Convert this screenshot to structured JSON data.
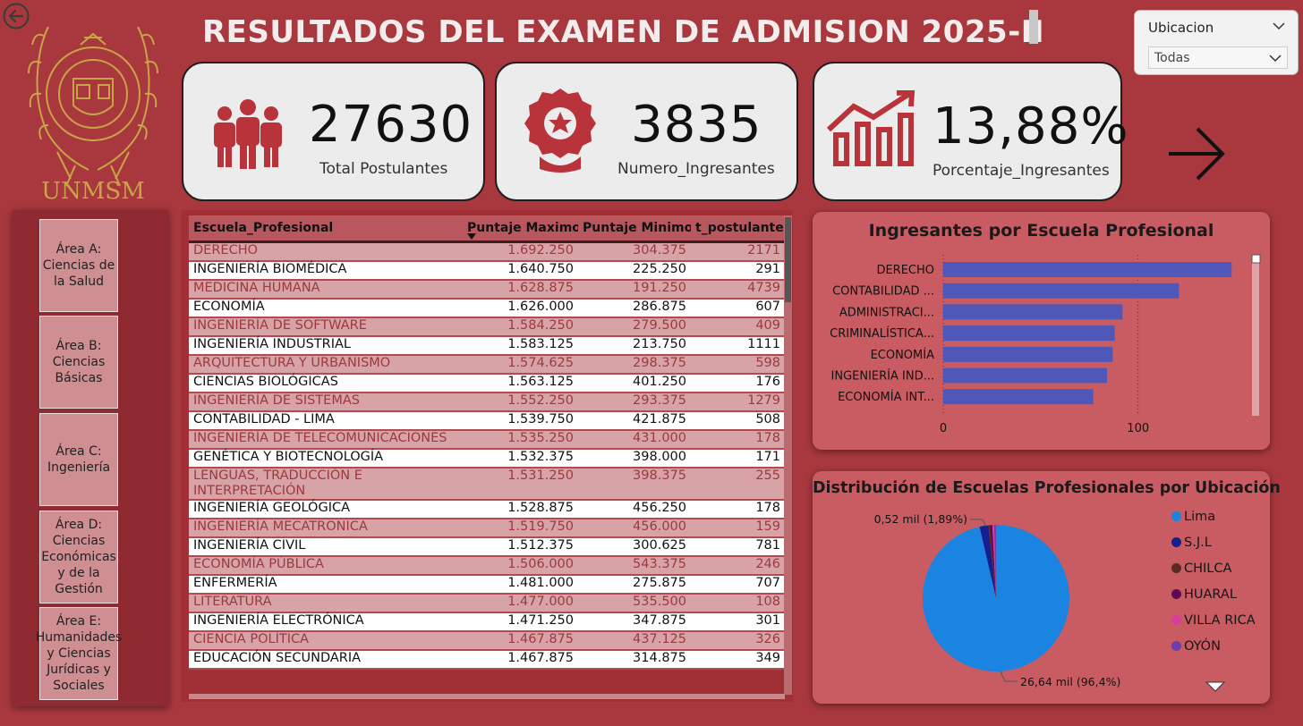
{
  "header": {
    "title": "RESULTADOS DEL EXAMEN DE ADMISION 2025-II",
    "logo_text": "UNMSM"
  },
  "filter": {
    "label": "Ubicacion",
    "selected": "Todas"
  },
  "kpis": {
    "total": {
      "value": "27630",
      "caption": "Total  Postulantes",
      "icon": "people-icon"
    },
    "ingresantes": {
      "value": "3835",
      "caption": "Numero_Ingresantes",
      "icon": "badge-icon"
    },
    "porcentaje": {
      "value": "13,88%",
      "caption": "Porcentaje_Ingresantes",
      "icon": "bar-growth-icon"
    }
  },
  "areas": [
    {
      "label": "Área A: Ciencias de la Salud"
    },
    {
      "label": "Área B: Ciencias Básicas"
    },
    {
      "label": "Área C: Ingeniería"
    },
    {
      "label": "Área D: Ciencias Económicas y de la Gestión"
    },
    {
      "label": "Área E: Humanidades y Ciencias Jurídicas y Sociales"
    }
  ],
  "table": {
    "columns": [
      "Escuela_Profesional",
      "Puntaje Maximo",
      "Puntaje Minimo",
      "t_postulantes"
    ],
    "rows": [
      [
        "DERECHO",
        "1.692.250",
        "304.375",
        "2171"
      ],
      [
        "INGENIERÍA BIOMÉDICA",
        "1.640.750",
        "225.250",
        "291"
      ],
      [
        "MEDICINA HUMANA",
        "1.628.875",
        "191.250",
        "4739"
      ],
      [
        "ECONOMÍA",
        "1.626.000",
        "286.875",
        "607"
      ],
      [
        "INGENIERÍA DE SOFTWARE",
        "1.584.250",
        "279.500",
        "409"
      ],
      [
        "INGENIERÍA INDUSTRIAL",
        "1.583.125",
        "213.750",
        "1111"
      ],
      [
        "ARQUITECTURA Y URBANISMO",
        "1.574.625",
        "298.375",
        "598"
      ],
      [
        "CIENCIAS BIOLÓGICAS",
        "1.563.125",
        "401.250",
        "176"
      ],
      [
        "INGENIERÍA DE SISTEMAS",
        "1.552.250",
        "293.375",
        "1279"
      ],
      [
        "CONTABILIDAD - LIMA",
        "1.539.750",
        "421.875",
        "508"
      ],
      [
        "INGENIERÍA DE TELECOMUNICACIONES",
        "1.535.250",
        "431.000",
        "178"
      ],
      [
        "GENÉTICA Y BIOTECNOLOGÍA",
        "1.532.375",
        "398.000",
        "171"
      ],
      [
        "LENGUAS, TRADUCCIÓN E INTERPRETACIÓN",
        "1.531.250",
        "398.375",
        "255"
      ],
      [
        "INGENIERÍA GEOLÓGICA",
        "1.528.875",
        "456.250",
        "178"
      ],
      [
        "INGENIERÍA MECATRONICA",
        "1.519.750",
        "456.000",
        "159"
      ],
      [
        "INGENIERÍA CIVIL",
        "1.512.375",
        "300.625",
        "781"
      ],
      [
        "ECONOMÍA PÚBLICA",
        "1.506.000",
        "543.375",
        "246"
      ],
      [
        "ENFERMERÍA",
        "1.481.000",
        "275.875",
        "707"
      ],
      [
        "LITERATURA",
        "1.477.000",
        "535.500",
        "108"
      ],
      [
        "INGENIERÍA ELECTRÓNICA",
        "1.471.250",
        "347.875",
        "301"
      ],
      [
        "CIENCIA POLÍTICA",
        "1.467.875",
        "437.125",
        "326"
      ],
      [
        "EDUCACIÓN SECUNDARIA",
        "1.467.875",
        "314.875",
        "349"
      ]
    ]
  },
  "bar_chart": {
    "title": "Ingresantes por Escuela Profesional",
    "categories": [
      "DERECHO",
      "CONTABILIDAD ...",
      "ADMINISTRACI...",
      "CRIMINALÍSTICA...",
      "ECONOMÍA",
      "INGENIERÍA IND...",
      "ECONOMÍA INT..."
    ],
    "values": [
      148,
      121,
      92,
      88,
      87,
      84,
      77
    ],
    "xlim": [
      0,
      158
    ],
    "ticks": [
      0,
      100
    ],
    "tick_labels": [
      "0",
      "100"
    ],
    "color": "#4f57b8"
  },
  "pie_chart": {
    "title": "Distribución de Escuelas Profesionales por Ubicación",
    "slices": [
      {
        "name": "Lima",
        "percent": 96.4,
        "color": "#1a84e0"
      },
      {
        "name": "S.J.L",
        "percent": 1.89,
        "color": "#14208f"
      },
      {
        "name": "CHILCA",
        "percent": 0.4,
        "color": "#5a2a22"
      },
      {
        "name": "HUARAL",
        "percent": 0.5,
        "color": "#5c0a57"
      },
      {
        "name": "VILLA RICA",
        "percent": 0.4,
        "color": "#d93e9e"
      },
      {
        "name": "OYÓN",
        "percent": 0.41,
        "color": "#6b3fb0"
      }
    ],
    "label_lima": "26,64 mil (96,4%)",
    "label_sjl": "0,52 mil (1,89%)"
  },
  "chart_data": [
    {
      "type": "bar",
      "title": "Ingresantes por Escuela Profesional",
      "categories": [
        "DERECHO",
        "CONTABILIDAD ...",
        "ADMINISTRACI...",
        "CRIMINALÍSTICA...",
        "ECONOMÍA",
        "INGENIERÍA IND...",
        "ECONOMÍA INT..."
      ],
      "values": [
        148,
        121,
        92,
        88,
        87,
        84,
        77
      ],
      "xlim": [
        0,
        158
      ]
    },
    {
      "type": "pie",
      "title": "Distribución de Escuelas Profesionales por Ubicación",
      "labels": [
        "Lima",
        "S.J.L",
        "CHILCA",
        "HUARAL",
        "VILLA RICA",
        "OYÓN"
      ],
      "values": [
        96.4,
        1.89,
        0.4,
        0.5,
        0.4,
        0.41
      ]
    }
  ]
}
